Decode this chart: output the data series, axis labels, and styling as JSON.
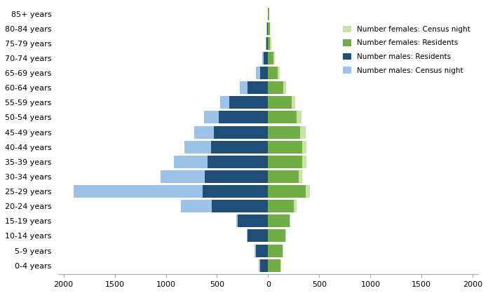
{
  "age_groups": [
    "0-4 years",
    "5-9 years",
    "10-14 years",
    "15-19 years",
    "20-24 years",
    "25-29 years",
    "30-34 years",
    "35-39 years",
    "40-44 years",
    "45-49 years",
    "50-54 years",
    "55-59 years",
    "60-64 years",
    "65-69 years",
    "70-74 years",
    "75-79 years",
    "80-84 years",
    "85+ years"
  ],
  "males_residents": [
    80,
    120,
    200,
    300,
    550,
    640,
    620,
    590,
    560,
    530,
    480,
    380,
    200,
    80,
    45,
    15,
    10,
    5
  ],
  "males_census_night": [
    90,
    130,
    210,
    310,
    850,
    1900,
    1050,
    920,
    820,
    720,
    630,
    470,
    280,
    120,
    60,
    25,
    15,
    5
  ],
  "females_residents": [
    120,
    140,
    170,
    210,
    250,
    370,
    300,
    330,
    330,
    310,
    280,
    230,
    150,
    90,
    50,
    20,
    15,
    10
  ],
  "females_census_night": [
    125,
    145,
    175,
    215,
    275,
    410,
    335,
    375,
    375,
    365,
    325,
    265,
    175,
    115,
    65,
    30,
    20,
    10
  ],
  "color_males_residents": "#1f4e79",
  "color_males_census": "#9dc3e6",
  "color_females_residents": "#70ad47",
  "color_females_census": "#c9e2a3",
  "xlim": 2050,
  "legend_labels": [
    "Number females: Census night",
    "Number females: Residents",
    "Number males: Residents",
    "Number males: Census night"
  ],
  "legend_colors": [
    "#c9e2a3",
    "#70ad47",
    "#1f4e79",
    "#9dc3e6"
  ]
}
